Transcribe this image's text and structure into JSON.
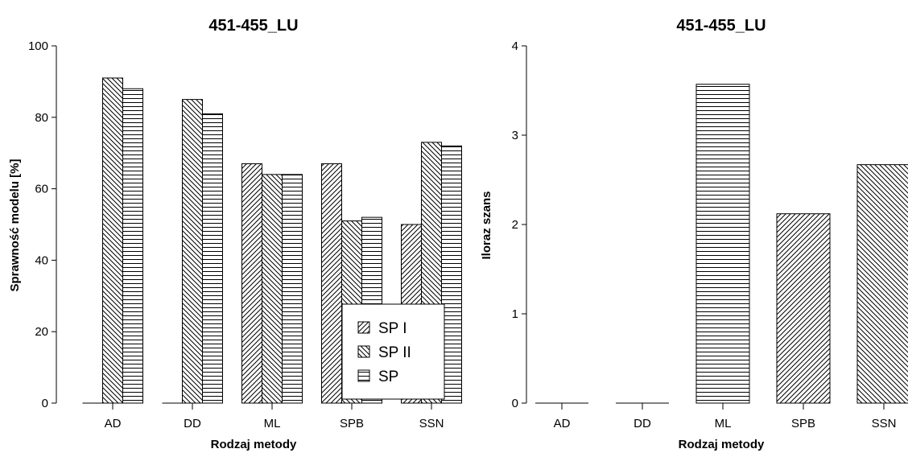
{
  "chart_data": [
    {
      "type": "bar",
      "title": "451-455_LU",
      "xlabel": "Rodzaj metody",
      "ylabel": "Sprawność modelu [%]",
      "categories": [
        "AD",
        "DD",
        "ML",
        "SPB",
        "SSN"
      ],
      "ylim": [
        0,
        100
      ],
      "yticks": [
        "0",
        "20",
        "40",
        "60",
        "80",
        "100"
      ],
      "legend_position": "bottom-right",
      "series": [
        {
          "name": "SP I",
          "pattern": "diag-up",
          "values": [
            0,
            0,
            67,
            67,
            50
          ]
        },
        {
          "name": "SP II",
          "pattern": "diag-down",
          "values": [
            91,
            85,
            64,
            51,
            73
          ]
        },
        {
          "name": "SP",
          "pattern": "horizontal",
          "values": [
            88,
            81,
            64,
            52,
            72
          ]
        }
      ]
    },
    {
      "type": "bar",
      "title": "451-455_LU",
      "xlabel": "Rodzaj metody",
      "ylabel": "Iloraz szans",
      "categories": [
        "AD",
        "DD",
        "ML",
        "SPB",
        "SSN"
      ],
      "ylim": [
        0,
        4
      ],
      "yticks": [
        "0",
        "1",
        "2",
        "3",
        "4"
      ],
      "values": [
        0,
        0,
        3.57,
        2.12,
        2.67
      ],
      "patterns": [
        "horizontal",
        "horizontal",
        "horizontal",
        "diag-up",
        "diag-down"
      ]
    }
  ]
}
